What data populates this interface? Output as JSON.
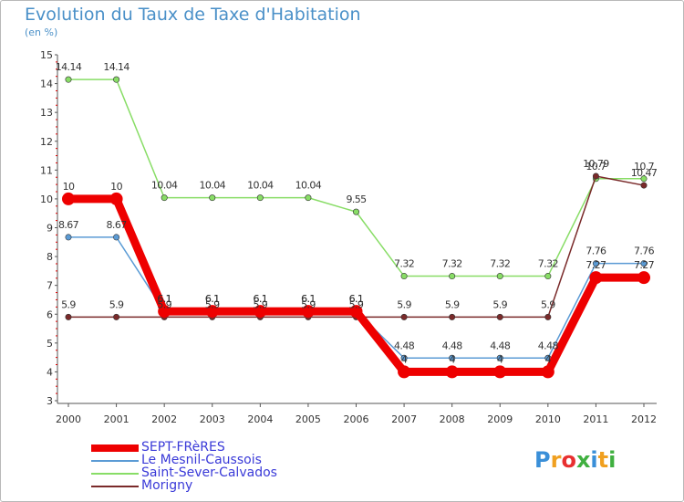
{
  "title": "Evolution du Taux de Taxe d'Habitation",
  "subtitle": "(en %)",
  "logo": {
    "text": "Proxiti",
    "colors": [
      "#3a8fd8",
      "#f0a020",
      "#e83030",
      "#40b040",
      "#3a8fd8",
      "#f0a020",
      "#40b040"
    ]
  },
  "chart_data": {
    "type": "line",
    "x": [
      "2000",
      "2001",
      "2002",
      "2003",
      "2004",
      "2005",
      "2006",
      "2007",
      "2008",
      "2009",
      "2010",
      "2011",
      "2012"
    ],
    "ylim": [
      3,
      15
    ],
    "yticks": [
      "3",
      "4",
      "5",
      "6",
      "7",
      "8",
      "9",
      "10",
      "11",
      "12",
      "13",
      "14",
      "15"
    ],
    "grid": false,
    "legend_position": "bottom-left",
    "series": [
      {
        "name": "SEPT-FRèRES",
        "color": "#ee0000",
        "values": [
          10,
          10,
          6.1,
          6.1,
          6.1,
          6.1,
          6.1,
          4,
          4,
          4,
          4,
          7.27,
          7.27
        ],
        "labels": [
          "10",
          "10",
          "6.1",
          "6.1",
          "6.1",
          "6.1",
          "6.1",
          "4",
          "4",
          "4",
          "4",
          "7.27",
          "7.27"
        ]
      },
      {
        "name": "Le Mesnil-Caussois",
        "color": "#5b9bd5",
        "values": [
          8.67,
          8.67,
          6.1,
          6.1,
          6.1,
          6.1,
          6.1,
          4.48,
          4.48,
          4.48,
          4.48,
          7.76,
          7.76
        ],
        "labels": [
          "8.67",
          "8.67",
          "6.1",
          "6.1",
          "6.1",
          "6.1",
          "6.1",
          "4.48",
          "4.48",
          "4.48",
          "4.48",
          "7.76",
          "7.76"
        ]
      },
      {
        "name": "Saint-Sever-Calvados",
        "color": "#88dd66",
        "values": [
          14.14,
          14.14,
          10.04,
          10.04,
          10.04,
          10.04,
          9.55,
          7.32,
          7.32,
          7.32,
          7.32,
          10.7,
          10.7
        ],
        "labels": [
          "14.14",
          "14.14",
          "10.04",
          "10.04",
          "10.04",
          "10.04",
          "9.55",
          "7.32",
          "7.32",
          "7.32",
          "7.32",
          "10.7",
          "10.7"
        ]
      },
      {
        "name": "Morigny",
        "color": "#7a2a2a",
        "values": [
          5.9,
          5.9,
          5.9,
          5.9,
          5.9,
          5.9,
          5.9,
          5.9,
          5.9,
          5.9,
          5.9,
          10.79,
          10.47
        ],
        "labels": [
          "5.9",
          "5.9",
          "5.9",
          "5.9",
          "5.9",
          "5.9",
          "5.9",
          "5.9",
          "5.9",
          "5.9",
          "5.9",
          "10.79",
          "10.47"
        ]
      }
    ]
  }
}
